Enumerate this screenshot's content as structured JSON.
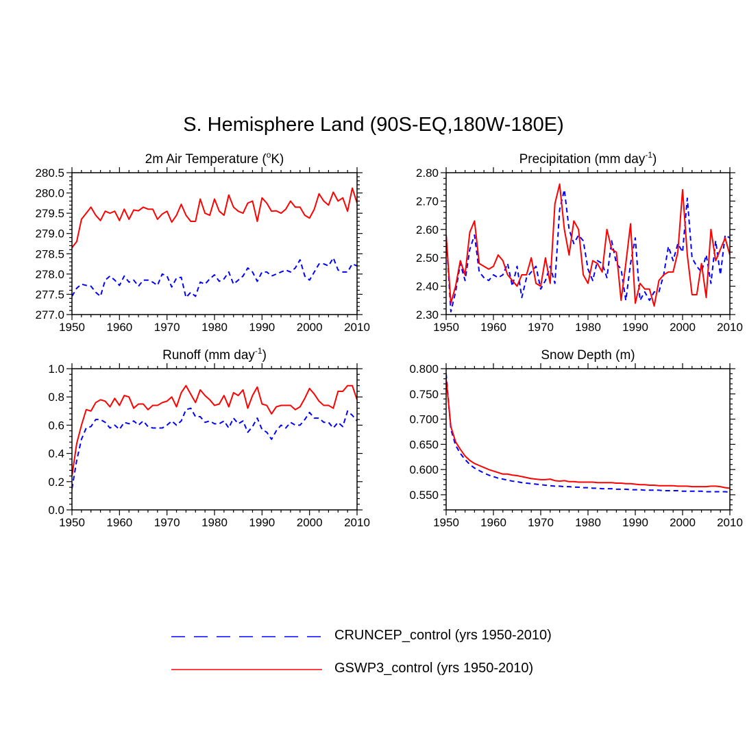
{
  "figure": {
    "title": "S. Hemisphere Land (90S-EQ,180W-180E)",
    "colors": {
      "series1": "#0000ff",
      "series2": "#ff0000",
      "axis": "#000000"
    }
  },
  "legend": [
    {
      "label": "CRUNCEP_control (yrs 1950-2010)",
      "style": "dashed",
      "color": "#0000ff"
    },
    {
      "label": "GSWP3_control (yrs 1950-2010)",
      "style": "solid",
      "color": "#ff0000"
    }
  ],
  "chart_data": [
    {
      "type": "line",
      "title": "2m Air Temperature (",
      "title_sup": "o",
      "title_after": "K)",
      "xlim": [
        1950,
        2010
      ],
      "ylim": [
        277.0,
        280.5
      ],
      "yticks": [
        277.0,
        277.5,
        278.0,
        278.5,
        279.0,
        279.5,
        280.0,
        280.5
      ],
      "ytick_labels": [
        "277.0",
        "277.5",
        "278.0",
        "278.5",
        "279.0",
        "279.5",
        "280.0",
        "280.5"
      ],
      "xticks": [
        1950,
        1960,
        1970,
        1980,
        1990,
        2000,
        2010
      ],
      "xtick_labels": [
        "1950",
        "1960",
        "1970",
        "1980",
        "1990",
        "2000",
        "2010"
      ],
      "x_start": 1950,
      "series": [
        {
          "name": "CRUNCEP_control",
          "values": [
            277.45,
            277.65,
            277.75,
            277.72,
            277.7,
            277.55,
            277.45,
            277.85,
            277.95,
            277.85,
            277.72,
            277.95,
            277.8,
            277.85,
            277.7,
            277.85,
            277.85,
            277.8,
            277.72,
            278.0,
            277.95,
            277.68,
            277.9,
            277.92,
            277.42,
            277.55,
            277.45,
            277.8,
            277.75,
            277.88,
            277.98,
            277.82,
            277.88,
            278.05,
            277.75,
            277.85,
            277.95,
            278.15,
            278.05,
            277.82,
            278.05,
            278.05,
            277.95,
            278.0,
            278.05,
            278.1,
            278.05,
            278.15,
            278.35,
            277.95,
            277.85,
            278.05,
            278.25,
            278.25,
            278.2,
            278.4,
            278.1,
            278.05,
            278.05,
            278.25,
            278.2
          ]
        },
        {
          "name": "GSWP3_control",
          "values": [
            278.65,
            278.8,
            279.35,
            279.5,
            279.65,
            279.45,
            279.32,
            279.55,
            279.5,
            279.55,
            279.32,
            279.6,
            279.35,
            279.58,
            279.56,
            279.65,
            279.6,
            279.6,
            279.35,
            279.48,
            279.55,
            279.28,
            279.45,
            279.72,
            279.45,
            279.3,
            279.3,
            279.85,
            279.5,
            279.45,
            279.85,
            279.55,
            279.45,
            279.95,
            279.65,
            279.55,
            279.5,
            279.75,
            279.8,
            279.3,
            279.88,
            279.75,
            279.55,
            279.56,
            279.5,
            279.6,
            279.8,
            279.65,
            279.65,
            279.45,
            279.38,
            279.6,
            279.98,
            279.8,
            279.7,
            280.02,
            279.8,
            279.88,
            279.55,
            280.12,
            279.75
          ]
        }
      ]
    },
    {
      "type": "line",
      "title": "Precipitation (mm day",
      "title_sup": "-1",
      "title_after": ")",
      "xlim": [
        1950,
        2010
      ],
      "ylim": [
        2.3,
        2.8
      ],
      "yticks": [
        2.3,
        2.4,
        2.5,
        2.6,
        2.7,
        2.8
      ],
      "ytick_labels": [
        "2.30",
        "2.40",
        "2.50",
        "2.60",
        "2.70",
        "2.80"
      ],
      "xticks": [
        1950,
        1960,
        1970,
        1980,
        1990,
        2000,
        2010
      ],
      "xtick_labels": [
        "1950",
        "1960",
        "1970",
        "1980",
        "1990",
        "2000",
        "2010"
      ],
      "x_start": 1950,
      "series": [
        {
          "name": "CRUNCEP_control",
          "values": [
            2.58,
            2.31,
            2.38,
            2.48,
            2.42,
            2.53,
            2.58,
            2.45,
            2.43,
            2.42,
            2.44,
            2.43,
            2.44,
            2.48,
            2.4,
            2.47,
            2.36,
            2.43,
            2.45,
            2.47,
            2.39,
            2.42,
            2.47,
            2.41,
            2.67,
            2.74,
            2.6,
            2.55,
            2.58,
            2.56,
            2.46,
            2.42,
            2.49,
            2.48,
            2.43,
            2.56,
            2.48,
            2.46,
            2.35,
            2.48,
            2.57,
            2.35,
            2.38,
            2.35,
            2.38,
            2.38,
            2.44,
            2.54,
            2.49,
            2.55,
            2.52,
            2.71,
            2.5,
            2.47,
            2.45,
            2.51,
            2.41,
            2.56,
            2.44,
            2.58,
            2.57
          ]
        },
        {
          "name": "GSWP3_control",
          "values": [
            2.58,
            2.34,
            2.4,
            2.49,
            2.44,
            2.59,
            2.63,
            2.48,
            2.47,
            2.46,
            2.47,
            2.51,
            2.49,
            2.44,
            2.42,
            2.4,
            2.44,
            2.44,
            2.5,
            2.41,
            2.4,
            2.5,
            2.41,
            2.69,
            2.76,
            2.6,
            2.51,
            2.63,
            2.6,
            2.44,
            2.41,
            2.49,
            2.48,
            2.45,
            2.6,
            2.53,
            2.52,
            2.35,
            2.48,
            2.62,
            2.34,
            2.41,
            2.39,
            2.39,
            2.33,
            2.42,
            2.44,
            2.45,
            2.45,
            2.52,
            2.74,
            2.51,
            2.37,
            2.37,
            2.48,
            2.36,
            2.6,
            2.49,
            2.53,
            2.57,
            2.51
          ]
        }
      ]
    },
    {
      "type": "line",
      "title": "Runoff (mm day",
      "title_sup": "-1",
      "title_after": ")",
      "xlim": [
        1950,
        2010
      ],
      "ylim": [
        0.0,
        1.0
      ],
      "yticks": [
        0.0,
        0.2,
        0.4,
        0.6,
        0.8,
        1.0
      ],
      "ytick_labels": [
        "0.0",
        "0.2",
        "0.4",
        "0.6",
        "0.8",
        "1.0"
      ],
      "xticks": [
        1950,
        1960,
        1970,
        1980,
        1990,
        2000,
        2010
      ],
      "xtick_labels": [
        "1950",
        "1960",
        "1970",
        "1980",
        "1990",
        "2000",
        "2010"
      ],
      "x_start": 1950,
      "series": [
        {
          "name": "CRUNCEP_control",
          "values": [
            0.15,
            0.35,
            0.5,
            0.58,
            0.59,
            0.64,
            0.64,
            0.62,
            0.58,
            0.6,
            0.57,
            0.62,
            0.61,
            0.63,
            0.6,
            0.63,
            0.59,
            0.58,
            0.58,
            0.58,
            0.6,
            0.63,
            0.6,
            0.63,
            0.71,
            0.72,
            0.66,
            0.66,
            0.62,
            0.63,
            0.61,
            0.61,
            0.63,
            0.58,
            0.65,
            0.61,
            0.63,
            0.55,
            0.59,
            0.65,
            0.57,
            0.55,
            0.5,
            0.56,
            0.6,
            0.58,
            0.62,
            0.6,
            0.6,
            0.64,
            0.69,
            0.65,
            0.65,
            0.62,
            0.62,
            0.58,
            0.62,
            0.59,
            0.7,
            0.67,
            0.63
          ]
        },
        {
          "name": "GSWP3_control",
          "values": [
            0.24,
            0.47,
            0.6,
            0.71,
            0.7,
            0.76,
            0.78,
            0.77,
            0.73,
            0.79,
            0.74,
            0.81,
            0.8,
            0.72,
            0.75,
            0.75,
            0.71,
            0.74,
            0.74,
            0.76,
            0.77,
            0.8,
            0.73,
            0.83,
            0.88,
            0.82,
            0.76,
            0.85,
            0.81,
            0.78,
            0.74,
            0.75,
            0.81,
            0.73,
            0.83,
            0.81,
            0.85,
            0.72,
            0.81,
            0.87,
            0.75,
            0.74,
            0.68,
            0.73,
            0.74,
            0.74,
            0.74,
            0.71,
            0.73,
            0.79,
            0.86,
            0.82,
            0.77,
            0.74,
            0.74,
            0.72,
            0.84,
            0.84,
            0.88,
            0.88,
            0.78
          ]
        }
      ]
    },
    {
      "type": "line",
      "title": "Snow Depth (m)",
      "title_sup": "",
      "title_after": "",
      "xlim": [
        1950,
        2010
      ],
      "ylim": [
        0.52,
        0.8
      ],
      "yticks": [
        0.55,
        0.6,
        0.65,
        0.7,
        0.75,
        0.8
      ],
      "ytick_labels": [
        "0.550",
        "0.600",
        "0.650",
        "0.700",
        "0.750",
        "0.800"
      ],
      "xticks": [
        1950,
        1960,
        1970,
        1980,
        1990,
        2000,
        2010
      ],
      "xtick_labels": [
        "1950",
        "1960",
        "1970",
        "1980",
        "1990",
        "2000",
        "2010"
      ],
      "x_start": 1950,
      "series": [
        {
          "name": "CRUNCEP_control",
          "values": [
            0.79,
            0.68,
            0.648,
            0.632,
            0.62,
            0.61,
            0.603,
            0.598,
            0.593,
            0.589,
            0.586,
            0.583,
            0.581,
            0.579,
            0.577,
            0.576,
            0.574,
            0.573,
            0.572,
            0.571,
            0.57,
            0.569,
            0.568,
            0.567,
            0.567,
            0.566,
            0.566,
            0.565,
            0.565,
            0.564,
            0.564,
            0.563,
            0.563,
            0.562,
            0.562,
            0.562,
            0.561,
            0.561,
            0.561,
            0.56,
            0.56,
            0.56,
            0.559,
            0.559,
            0.559,
            0.559,
            0.558,
            0.558,
            0.558,
            0.558,
            0.557,
            0.557,
            0.557,
            0.557,
            0.557,
            0.556,
            0.556,
            0.556,
            0.556,
            0.556,
            0.555
          ]
        },
        {
          "name": "GSWP3_control",
          "values": [
            0.78,
            0.685,
            0.655,
            0.64,
            0.627,
            0.618,
            0.612,
            0.608,
            0.604,
            0.6,
            0.597,
            0.594,
            0.591,
            0.591,
            0.589,
            0.588,
            0.586,
            0.584,
            0.582,
            0.581,
            0.58,
            0.58,
            0.581,
            0.578,
            0.577,
            0.578,
            0.576,
            0.576,
            0.575,
            0.575,
            0.575,
            0.575,
            0.574,
            0.574,
            0.574,
            0.574,
            0.573,
            0.573,
            0.572,
            0.572,
            0.571,
            0.57,
            0.57,
            0.569,
            0.569,
            0.568,
            0.568,
            0.568,
            0.568,
            0.567,
            0.567,
            0.567,
            0.566,
            0.566,
            0.566,
            0.566,
            0.567,
            0.567,
            0.566,
            0.564,
            0.563
          ]
        }
      ]
    }
  ]
}
